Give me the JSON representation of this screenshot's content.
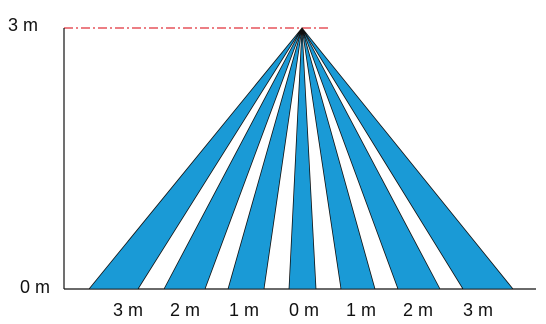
{
  "y_axis": {
    "top_label": "3 m",
    "bottom_label": "0 m"
  },
  "x_axis": {
    "ticks": [
      "3 m",
      "2 m",
      "1 m",
      "0 m",
      "1 m",
      "2 m",
      "3 m"
    ]
  },
  "beams": {
    "count": 7,
    "fill_color": "#1a9ad6",
    "stroke_color": "#111111"
  },
  "reference_line": {
    "color": "#e0303a",
    "style": "dash-dot"
  },
  "axis_color": "#111111"
}
